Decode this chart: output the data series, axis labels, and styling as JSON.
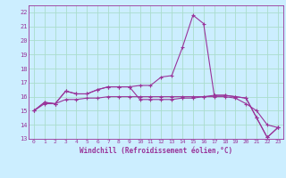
{
  "xlabel": "Windchill (Refroidissement éolien,°C)",
  "bg_color": "#cceeff",
  "grid_color": "#aaddcc",
  "line_color": "#993399",
  "xlim": [
    -0.5,
    23.5
  ],
  "ylim": [
    13,
    22.5
  ],
  "yticks": [
    13,
    14,
    15,
    16,
    17,
    18,
    19,
    20,
    21,
    22
  ],
  "xticks": [
    0,
    1,
    2,
    3,
    4,
    5,
    6,
    7,
    8,
    9,
    10,
    11,
    12,
    13,
    14,
    15,
    16,
    17,
    18,
    19,
    20,
    21,
    22,
    23
  ],
  "curve1_x": [
    0,
    1,
    2,
    3,
    4,
    5,
    6,
    7,
    8,
    9,
    10,
    11,
    12,
    13,
    14,
    15,
    16,
    17,
    18,
    19,
    20,
    21,
    22,
    23
  ],
  "curve1_y": [
    15.0,
    15.6,
    15.5,
    16.4,
    16.2,
    16.2,
    16.5,
    16.7,
    16.7,
    16.7,
    16.8,
    16.8,
    17.4,
    17.5,
    19.5,
    21.8,
    21.2,
    16.1,
    16.1,
    16.0,
    15.9,
    14.5,
    13.1,
    13.8
  ],
  "curve2_x": [
    0,
    1,
    2,
    3,
    4,
    5,
    6,
    7,
    8,
    9,
    10,
    11,
    12,
    13,
    14,
    15,
    16,
    17,
    18,
    19,
    20,
    21,
    22,
    23
  ],
  "curve2_y": [
    15.0,
    15.6,
    15.5,
    16.4,
    16.2,
    16.2,
    16.5,
    16.7,
    16.7,
    16.7,
    15.8,
    15.8,
    15.8,
    15.8,
    15.9,
    15.9,
    16.0,
    16.1,
    16.1,
    16.0,
    15.9,
    14.5,
    13.1,
    13.8
  ],
  "curve3_x": [
    0,
    1,
    2,
    3,
    4,
    5,
    6,
    7,
    8,
    9,
    10,
    11,
    12,
    13,
    14,
    15,
    16,
    17,
    18,
    19,
    20,
    21,
    22,
    23
  ],
  "curve3_y": [
    15.0,
    15.5,
    15.5,
    15.8,
    15.8,
    15.9,
    15.9,
    16.0,
    16.0,
    16.0,
    16.0,
    16.0,
    16.0,
    16.0,
    16.0,
    16.0,
    16.0,
    16.0,
    16.0,
    15.9,
    15.5,
    15.0,
    14.0,
    13.8
  ]
}
